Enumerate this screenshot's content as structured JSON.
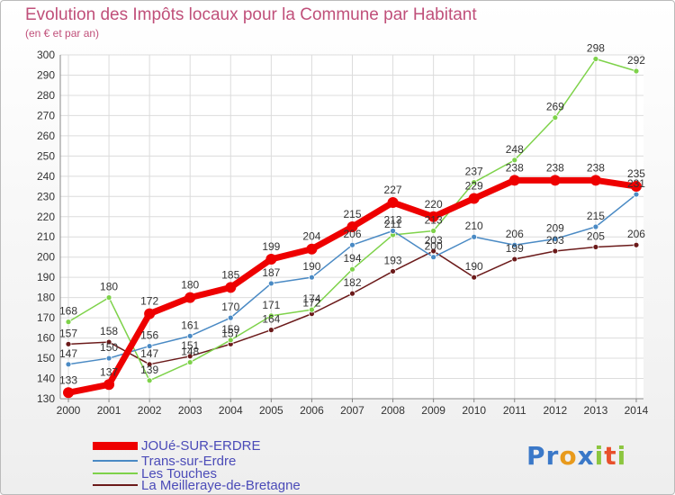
{
  "header": {
    "title": "Evolution des Impôts locaux pour la Commune par Habitant",
    "subtitle": "(en € et par an)"
  },
  "logo": {
    "letters": [
      {
        "ch": "P",
        "color": "#3a78c8"
      },
      {
        "ch": "r",
        "color": "#3a78c8"
      },
      {
        "ch": "o",
        "color": "#e89a1c"
      },
      {
        "ch": "x",
        "color": "#3a78c8"
      },
      {
        "ch": "i",
        "color": "#8cc63f"
      },
      {
        "ch": "t",
        "color": "#e8502c"
      },
      {
        "ch": "i",
        "color": "#8cc63f"
      }
    ]
  },
  "chart_data": {
    "type": "line",
    "title": "Evolution des Impôts locaux pour la Commune par Habitant",
    "subtitle": "(en € et par an)",
    "xlabel": "",
    "ylabel": "",
    "x": [
      2000,
      2001,
      2002,
      2003,
      2004,
      2005,
      2006,
      2007,
      2008,
      2009,
      2010,
      2011,
      2012,
      2013,
      2014
    ],
    "ylim": [
      130,
      300
    ],
    "yticks": [
      130,
      140,
      150,
      160,
      170,
      180,
      190,
      200,
      210,
      220,
      230,
      240,
      250,
      260,
      270,
      280,
      290,
      300
    ],
    "grid": true,
    "legend": "bottom-left",
    "series": [
      {
        "name": "JOUé-SUR-ERDRE",
        "color": "#ee0000",
        "width": 7,
        "marker": 6,
        "values": [
          133,
          137,
          172,
          180,
          185,
          199,
          204,
          215,
          227,
          220,
          229,
          238,
          238,
          238,
          235
        ]
      },
      {
        "name": "Trans-sur-Erdre",
        "color": "#4a8ac4",
        "width": 1.5,
        "marker": 3,
        "values": [
          147,
          150,
          156,
          161,
          170,
          187,
          190,
          206,
          213,
          200,
          210,
          206,
          209,
          215,
          231
        ]
      },
      {
        "name": "Les Touches",
        "color": "#7ed24a",
        "width": 1.5,
        "marker": 3,
        "values": [
          168,
          180,
          139,
          148,
          159,
          171,
          174,
          194,
          211,
          213,
          237,
          248,
          269,
          298,
          292
        ]
      },
      {
        "name": "La Meilleraye-de-Bretagne",
        "color": "#6b1a1a",
        "width": 1.5,
        "marker": 3,
        "values": [
          157,
          158,
          147,
          151,
          157,
          164,
          172,
          182,
          193,
          203,
          190,
          199,
          203,
          205,
          206
        ]
      }
    ]
  }
}
